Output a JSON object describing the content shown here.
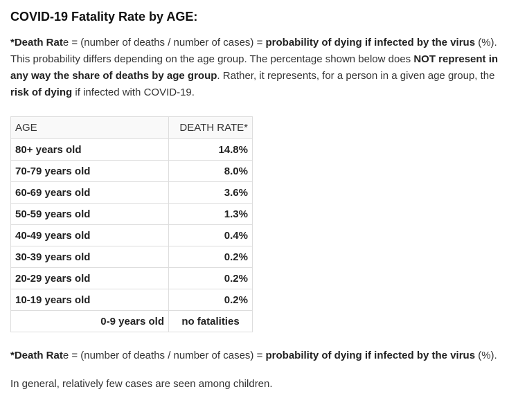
{
  "title": "COVID-19 Fatality Rate by AGE:",
  "intro": {
    "p1_prefix": "*Death Rat",
    "p1_e": "e = (number of deaths / number of cases) = ",
    "p1_bold": "probability of dying if infected by the virus",
    "p1_suffix": " (%). This probability differs depending on the age group. The percentage shown below does ",
    "p2_bold": "NOT represent in any way the share of deaths by age group",
    "p2_suffix": ". Rather, it represents, for a person in a given age group, the ",
    "p3_bold": "risk of dying",
    "p3_suffix": " if infected with COVID-19."
  },
  "table": {
    "headers": {
      "age": "AGE",
      "rate": "DEATH RATE*"
    },
    "rows": [
      {
        "age": "80+ years old",
        "rate": "14.8%"
      },
      {
        "age": "70-79 years old",
        "rate": "8.0%"
      },
      {
        "age": "60-69 years old",
        "rate": "3.6%"
      },
      {
        "age": "50-59 years old",
        "rate": "1.3%"
      },
      {
        "age": "40-49 years old",
        "rate": "0.4%"
      },
      {
        "age": "30-39 years old",
        "rate": "0.2%"
      },
      {
        "age": "20-29 years old",
        "rate": "0.2%"
      },
      {
        "age": "10-19 years old",
        "rate": "0.2%"
      },
      {
        "age": "0-9 years old",
        "rate": "no fatalities"
      }
    ]
  },
  "footer": {
    "def_prefix": "*Death Rat",
    "def_e": "e = (number of deaths / number of cases) = ",
    "def_bold": "probability of dying if infected by the virus",
    "def_suffix": " (%).",
    "note": "In general, relatively few cases are seen among children."
  }
}
